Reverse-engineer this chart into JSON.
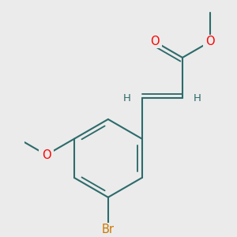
{
  "bg_color": "#ebebeb",
  "bond_color": "#2d6b6b",
  "bond_width": 1.5,
  "atom_colors": {
    "O": "#ff0000",
    "Br": "#cc7700",
    "H": "#2d6b6b",
    "C": "#2d6b6b"
  },
  "font_size": 10.5,
  "fig_size": [
    3.0,
    3.0
  ],
  "dpi": 100
}
